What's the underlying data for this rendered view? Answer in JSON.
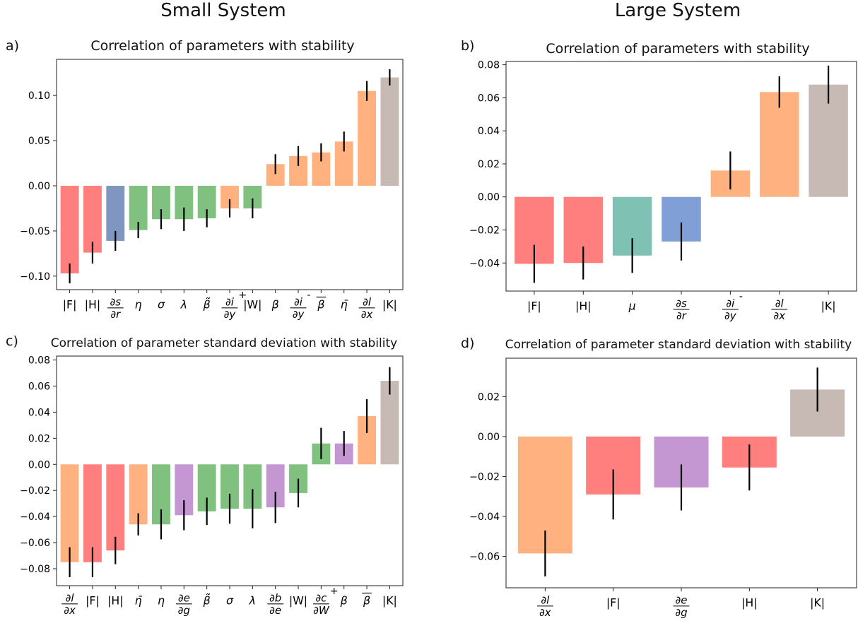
{
  "figure": {
    "left_heading": "Small System",
    "right_heading": "Large System"
  },
  "colors": {
    "red": "#ff7f7f",
    "blue": "#7f96c0",
    "green": "#80c180",
    "orange": "#ffb27f",
    "taupe": "#c7bab4",
    "teal": "#7fc1b2",
    "cornflower": "#7f9fd6",
    "purple": "#c497d2",
    "error_bar": "#000000"
  },
  "chart_data": [
    {
      "type": "bar",
      "panel": "a)",
      "title": "Correlation of parameters with stability",
      "xlabel": "",
      "ylabel": "",
      "ylim": [
        -0.115,
        0.14
      ],
      "yticks": [
        -0.1,
        -0.05,
        0.0,
        0.05,
        0.1
      ],
      "ytick_labels": [
        "−0.10",
        "−0.05",
        "0.00",
        "0.05",
        "0.10"
      ],
      "categories": [
        "|F|",
        "|H|",
        "∂s/∂r",
        "η",
        "σ",
        "λ",
        "β̃",
        "∂i/∂y +",
        "|W|",
        "β",
        "∂i/∂y -",
        "β̄",
        "η̄",
        "∂l/∂x",
        "|K|"
      ],
      "values": [
        -0.097,
        -0.074,
        -0.061,
        -0.049,
        -0.037,
        -0.037,
        -0.036,
        -0.025,
        -0.025,
        0.024,
        0.033,
        0.037,
        0.049,
        0.105,
        0.12
      ],
      "errors": [
        0.011,
        0.012,
        0.011,
        0.009,
        0.011,
        0.013,
        0.01,
        0.01,
        0.011,
        0.011,
        0.011,
        0.01,
        0.011,
        0.011,
        0.009
      ],
      "colors": [
        "red",
        "red",
        "blue",
        "green",
        "green",
        "green",
        "green",
        "orange",
        "green",
        "orange",
        "orange",
        "orange",
        "orange",
        "orange",
        "taupe"
      ]
    },
    {
      "type": "bar",
      "panel": "b)",
      "title": "Correlation of parameters with stability",
      "xlabel": "",
      "ylabel": "",
      "ylim": [
        -0.057,
        0.082
      ],
      "yticks": [
        -0.04,
        -0.02,
        0.0,
        0.02,
        0.04,
        0.06,
        0.08
      ],
      "ytick_labels": [
        "−0.04",
        "−0.02",
        "0.00",
        "0.02",
        "0.04",
        "0.06",
        "0.08"
      ],
      "categories": [
        "|F|",
        "|H|",
        "μ",
        "∂s/∂r",
        "∂i/∂y -",
        "∂l/∂x",
        "|K|"
      ],
      "values": [
        -0.0405,
        -0.04,
        -0.0355,
        -0.027,
        0.016,
        0.0635,
        0.068
      ],
      "errors": [
        0.0115,
        0.01,
        0.0105,
        0.0115,
        0.0115,
        0.0095,
        0.0115
      ],
      "colors": [
        "red",
        "red",
        "teal",
        "cornflower",
        "orange",
        "orange",
        "taupe"
      ]
    },
    {
      "type": "bar",
      "panel": "c)",
      "title": "Correlation of parameter standard deviation with stability",
      "xlabel": "",
      "ylabel": "",
      "ylim": [
        -0.093,
        0.083
      ],
      "yticks": [
        -0.08,
        -0.06,
        -0.04,
        -0.02,
        0.0,
        0.02,
        0.04,
        0.06,
        0.08
      ],
      "ytick_labels": [
        "−0.08",
        "−0.06",
        "−0.04",
        "−0.02",
        "0.00",
        "0.02",
        "0.04",
        "0.06",
        "0.08"
      ],
      "categories": [
        "∂l/∂x",
        "|F|",
        "|H|",
        "η̄",
        "η",
        "∂e/∂g",
        "β̃",
        "σ",
        "λ",
        "∂b/∂e",
        "|W|",
        "∂c/∂W +",
        "β",
        "β̄",
        "|K|"
      ],
      "values": [
        -0.075,
        -0.075,
        -0.066,
        -0.046,
        -0.046,
        -0.039,
        -0.036,
        -0.034,
        -0.034,
        -0.033,
        -0.022,
        0.016,
        0.016,
        0.037,
        0.064
      ],
      "errors": [
        0.0115,
        0.0115,
        0.0105,
        0.0085,
        0.0115,
        0.0115,
        0.0105,
        0.0115,
        0.015,
        0.012,
        0.011,
        0.012,
        0.0095,
        0.013,
        0.0105
      ],
      "colors": [
        "orange",
        "red",
        "red",
        "orange",
        "green",
        "purple",
        "green",
        "green",
        "green",
        "purple",
        "green",
        "green",
        "purple",
        "orange",
        "taupe"
      ]
    },
    {
      "type": "bar",
      "panel": "d)",
      "title": "Correlation of parameter standard deviation with stability",
      "xlabel": "",
      "ylabel": "",
      "ylim": [
        -0.0757,
        0.0392
      ],
      "yticks": [
        -0.06,
        -0.04,
        -0.02,
        0.0,
        0.02
      ],
      "ytick_labels": [
        "−0.06",
        "−0.04",
        "−0.02",
        "0.00",
        "0.02"
      ],
      "categories": [
        "∂l/∂x",
        "|F|",
        "∂e/∂g",
        "|H|",
        "|K|"
      ],
      "values": [
        -0.0585,
        -0.029,
        -0.0255,
        -0.0155,
        0.0235
      ],
      "errors": [
        0.0115,
        0.0125,
        0.0115,
        0.0115,
        0.011
      ],
      "colors": [
        "orange",
        "red",
        "purple",
        "red",
        "taupe"
      ]
    }
  ]
}
